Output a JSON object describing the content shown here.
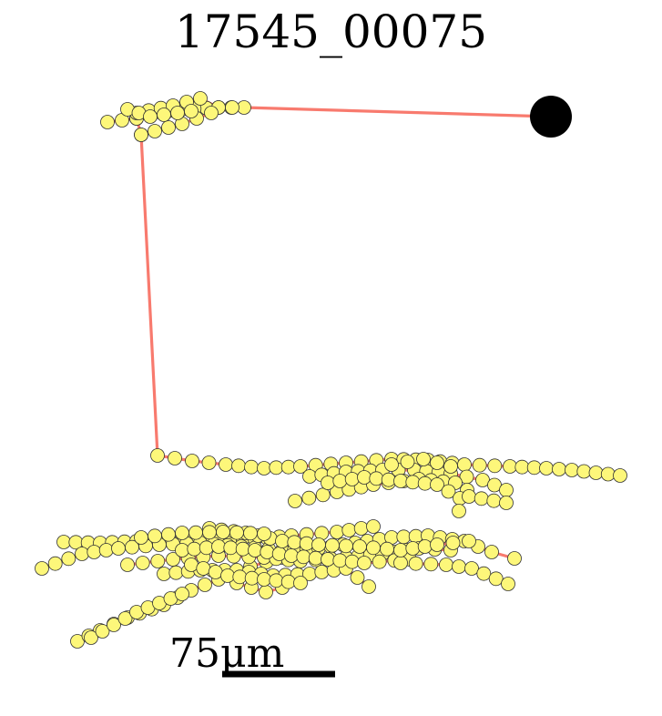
{
  "title": "17545_00075",
  "scale_bar": {
    "label": "75μm"
  },
  "colors": {
    "branch": "#f87a6e",
    "node_fill": "#fdf77a",
    "node_stroke": "#333333",
    "soma": "#000000",
    "scale_bar": "#000000"
  }
}
